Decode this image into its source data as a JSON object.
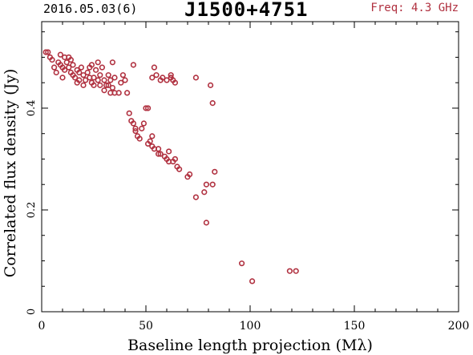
{
  "header": {
    "date": "2016.05.03(6)",
    "source": "J1500+4751",
    "freq": "Freq: 4.3 GHz"
  },
  "colors": {
    "points": "#b0303f",
    "axes": "#000000"
  },
  "chart_data": {
    "type": "scatter",
    "title": "J1500+4751",
    "xlabel": "Baseline length projection (Mλ)",
    "ylabel": "Correlated flux density (Jy)",
    "xlim": [
      0,
      200
    ],
    "ylim": [
      0,
      0.57
    ],
    "xticks": [
      0,
      50,
      100,
      150,
      200
    ],
    "yticks": [
      0,
      0.2,
      0.4
    ],
    "ytick_labels": [
      "0",
      "0.2",
      "0.4"
    ],
    "grid": false,
    "marker": "open-circle",
    "points": [
      [
        2,
        0.51
      ],
      [
        3,
        0.51
      ],
      [
        4,
        0.5
      ],
      [
        5,
        0.495
      ],
      [
        6,
        0.48
      ],
      [
        7,
        0.47
      ],
      [
        8,
        0.49
      ],
      [
        9,
        0.485
      ],
      [
        9,
        0.505
      ],
      [
        10,
        0.46
      ],
      [
        10,
        0.48
      ],
      [
        11,
        0.475
      ],
      [
        11,
        0.5
      ],
      [
        12,
        0.49
      ],
      [
        13,
        0.48
      ],
      [
        13,
        0.5
      ],
      [
        14,
        0.47
      ],
      [
        14,
        0.495
      ],
      [
        15,
        0.485
      ],
      [
        15,
        0.465
      ],
      [
        16,
        0.46
      ],
      [
        17,
        0.45
      ],
      [
        17,
        0.475
      ],
      [
        18,
        0.47
      ],
      [
        18,
        0.455
      ],
      [
        19,
        0.48
      ],
      [
        20,
        0.465
      ],
      [
        20,
        0.445
      ],
      [
        21,
        0.455
      ],
      [
        22,
        0.47
      ],
      [
        23,
        0.48
      ],
      [
        23,
        0.46
      ],
      [
        24,
        0.45
      ],
      [
        24,
        0.485
      ],
      [
        25,
        0.445
      ],
      [
        25,
        0.46
      ],
      [
        26,
        0.475
      ],
      [
        27,
        0.49
      ],
      [
        27,
        0.455
      ],
      [
        28,
        0.465
      ],
      [
        28,
        0.445
      ],
      [
        29,
        0.48
      ],
      [
        30,
        0.455
      ],
      [
        30,
        0.435
      ],
      [
        31,
        0.445
      ],
      [
        32,
        0.465
      ],
      [
        32,
        0.445
      ],
      [
        33,
        0.43
      ],
      [
        33,
        0.455
      ],
      [
        34,
        0.49
      ],
      [
        34,
        0.44
      ],
      [
        35,
        0.43
      ],
      [
        35,
        0.46
      ],
      [
        37,
        0.43
      ],
      [
        38,
        0.45
      ],
      [
        39,
        0.465
      ],
      [
        40,
        0.455
      ],
      [
        41,
        0.43
      ],
      [
        42,
        0.39
      ],
      [
        43,
        0.375
      ],
      [
        44,
        0.37
      ],
      [
        44,
        0.485
      ],
      [
        45,
        0.36
      ],
      [
        45,
        0.355
      ],
      [
        46,
        0.345
      ],
      [
        47,
        0.34
      ],
      [
        48,
        0.36
      ],
      [
        49,
        0.37
      ],
      [
        50,
        0.4
      ],
      [
        51,
        0.4
      ],
      [
        51,
        0.33
      ],
      [
        52,
        0.335
      ],
      [
        53,
        0.345
      ],
      [
        53,
        0.325
      ],
      [
        53,
        0.46
      ],
      [
        54,
        0.48
      ],
      [
        54,
        0.32
      ],
      [
        55,
        0.465
      ],
      [
        56,
        0.32
      ],
      [
        56,
        0.31
      ],
      [
        57,
        0.455
      ],
      [
        57,
        0.31
      ],
      [
        58,
        0.46
      ],
      [
        59,
        0.305
      ],
      [
        60,
        0.3
      ],
      [
        60,
        0.455
      ],
      [
        61,
        0.315
      ],
      [
        61,
        0.295
      ],
      [
        62,
        0.465
      ],
      [
        62,
        0.46
      ],
      [
        63,
        0.455
      ],
      [
        63,
        0.295
      ],
      [
        64,
        0.3
      ],
      [
        64,
        0.45
      ],
      [
        65,
        0.285
      ],
      [
        66,
        0.28
      ],
      [
        70,
        0.265
      ],
      [
        71,
        0.27
      ],
      [
        74,
        0.225
      ],
      [
        74,
        0.46
      ],
      [
        78,
        0.235
      ],
      [
        79,
        0.175
      ],
      [
        79,
        0.25
      ],
      [
        81,
        0.445
      ],
      [
        82,
        0.41
      ],
      [
        82,
        0.25
      ],
      [
        83,
        0.275
      ],
      [
        96,
        0.095
      ],
      [
        101,
        0.06
      ],
      [
        119,
        0.08
      ],
      [
        122,
        0.08
      ]
    ]
  }
}
